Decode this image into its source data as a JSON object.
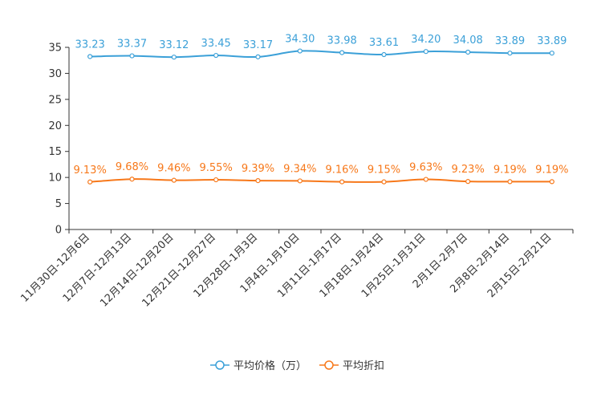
{
  "chart_data": {
    "type": "line",
    "title": "",
    "xlabel": "",
    "ylabel": "",
    "ylim": [
      0,
      35
    ],
    "yticks": [
      0,
      5,
      10,
      15,
      20,
      25,
      30,
      35
    ],
    "grid": false,
    "legend_position": "bottom",
    "categories": [
      "11月30日-12月6日",
      "12月7日-12月13日",
      "12月14日-12月20日",
      "12月21日-12月27日",
      "12月28日-1月3日",
      "1月4日-1月10日",
      "1月11日-1月17日",
      "1月18日-1月24日",
      "1月25日-1月31日",
      "2月1日-2月7日",
      "2月8日-2月14日",
      "2月15日-2月21日"
    ],
    "series": [
      {
        "name": "平均价格（万）",
        "color": "#3ba0d8",
        "values": [
          33.23,
          33.37,
          33.12,
          33.45,
          33.17,
          34.3,
          33.98,
          33.61,
          34.2,
          34.08,
          33.89,
          33.89
        ],
        "labels": [
          "33.23",
          "33.37",
          "33.12",
          "33.45",
          "33.17",
          "34.30",
          "33.98",
          "33.61",
          "34.20",
          "34.08",
          "33.89",
          "33.89"
        ]
      },
      {
        "name": "平均折扣",
        "color": "#f7781a",
        "values": [
          9.13,
          9.68,
          9.46,
          9.55,
          9.39,
          9.34,
          9.16,
          9.15,
          9.63,
          9.23,
          9.19,
          9.19
        ],
        "labels": [
          "9.13%",
          "9.68%",
          "9.46%",
          "9.55%",
          "9.39%",
          "9.34%",
          "9.16%",
          "9.15%",
          "9.63%",
          "9.23%",
          "9.19%",
          "9.19%"
        ]
      }
    ]
  }
}
